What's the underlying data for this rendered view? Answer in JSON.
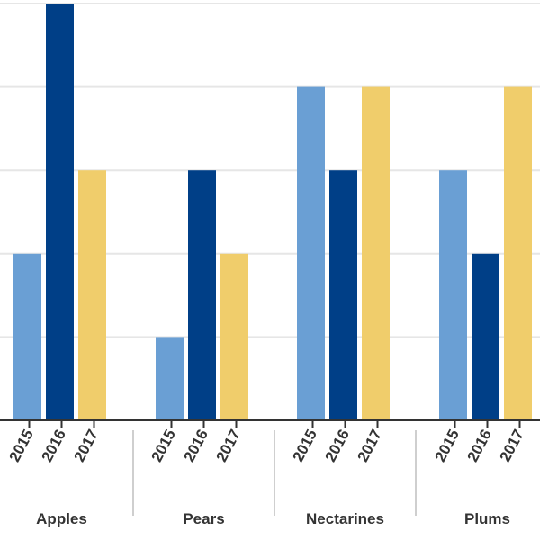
{
  "chart_data": {
    "type": "bar",
    "title": "",
    "xlabel": "",
    "ylabel": "",
    "categories": [
      "Apples",
      "Pears",
      "Nectarines",
      "Plums"
    ],
    "series": [
      {
        "name": "2015",
        "color": "#6a9fd4",
        "values": [
          2,
          1,
          4,
          3
        ]
      },
      {
        "name": "2016",
        "color": "#003f87",
        "values": [
          5,
          3,
          3,
          2
        ]
      },
      {
        "name": "2017",
        "color": "#f0cd6b",
        "values": [
          3,
          2,
          4,
          4
        ]
      }
    ],
    "ylim": [
      0,
      5
    ],
    "grid": true,
    "legend": "none"
  }
}
